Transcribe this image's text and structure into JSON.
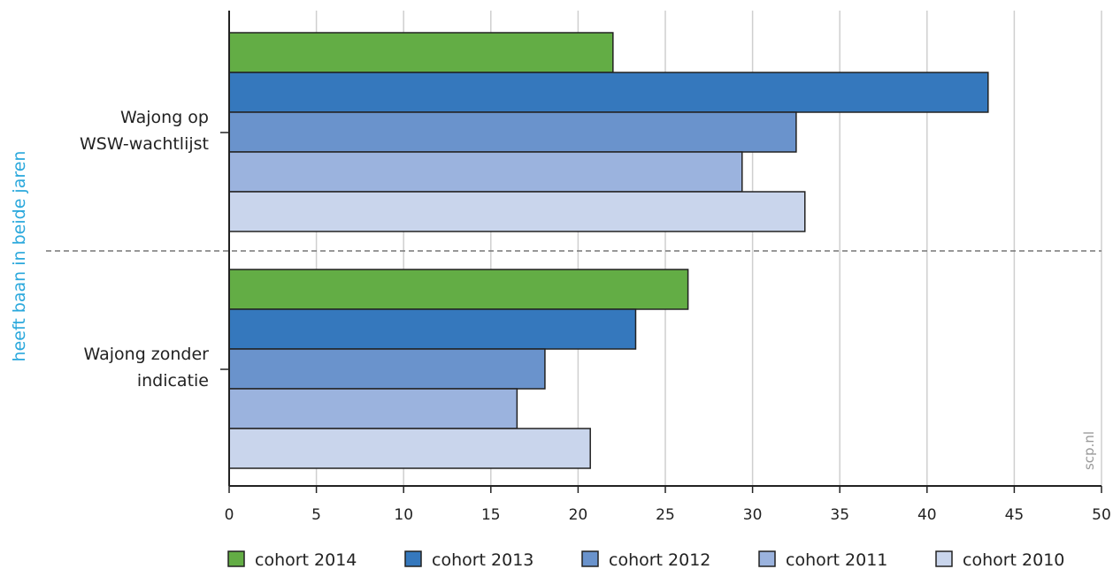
{
  "chart_data": {
    "type": "bar",
    "orientation": "horizontal",
    "ylabel": "heeft baan in beide jaren",
    "xlabel": "",
    "watermark": "scp.nl",
    "xlim": [
      0,
      50
    ],
    "xticks": [
      0,
      5,
      10,
      15,
      20,
      25,
      30,
      35,
      40,
      45,
      50
    ],
    "grid": true,
    "legend_position": "bottom",
    "categories": [
      {
        "lines": [
          "Wajong op",
          "WSW-wachtlijst"
        ]
      },
      {
        "lines": [
          "Wajong zonder",
          "indicatie"
        ]
      }
    ],
    "series": [
      {
        "name": "cohort 2014",
        "color": "#63ad45",
        "values": [
          22.0,
          26.3
        ]
      },
      {
        "name": "cohort 2013",
        "color": "#3578bd",
        "values": [
          43.5,
          23.3
        ]
      },
      {
        "name": "cohort 2012",
        "color": "#6a93cc",
        "values": [
          32.5,
          18.1
        ]
      },
      {
        "name": "cohort 2011",
        "color": "#9bb3de",
        "values": [
          29.4,
          16.5
        ]
      },
      {
        "name": "cohort 2010",
        "color": "#c9d5ec",
        "values": [
          33.0,
          20.7
        ]
      }
    ]
  }
}
